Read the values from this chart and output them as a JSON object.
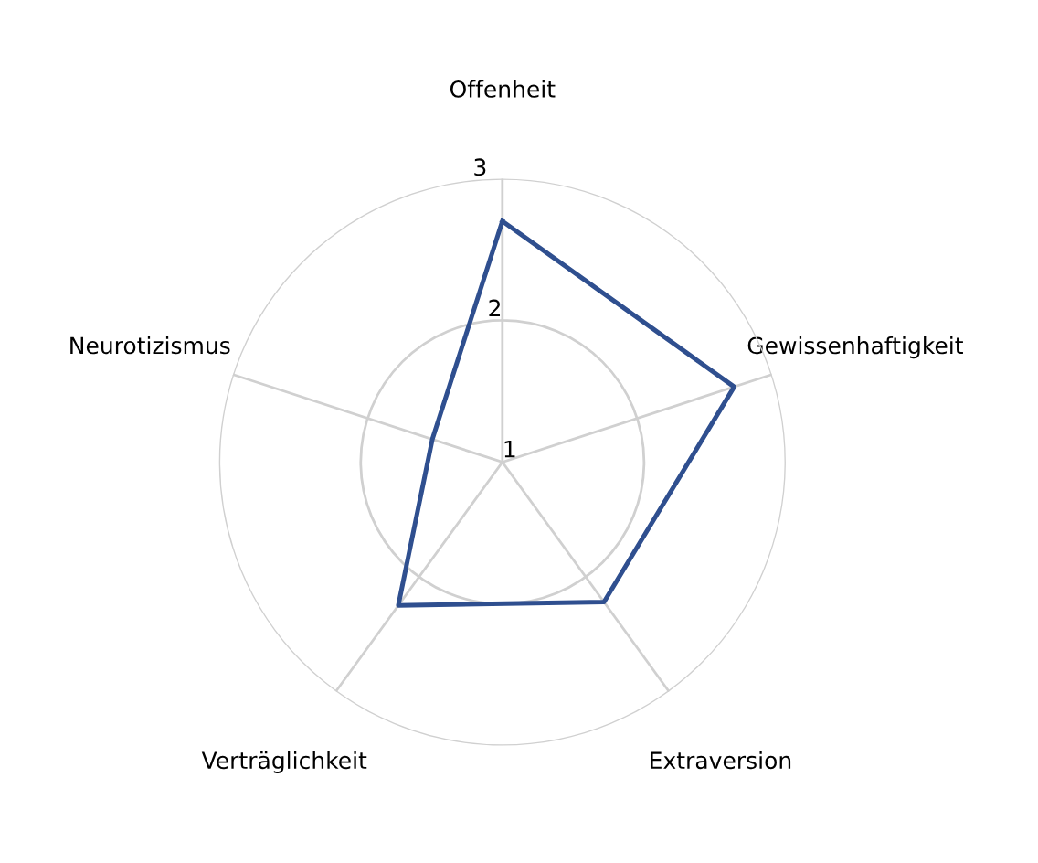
{
  "chart_data": {
    "type": "radar",
    "categories": [
      "Offenheit",
      "Gewissenhaftigkeit",
      "Extraversion",
      "Verträglichkeit",
      "Neurotizismus"
    ],
    "series": [
      {
        "color": "#2f4f8f",
        "values": [
          2.7,
          2.72,
          2.22,
          2.25,
          1.52
        ]
      }
    ],
    "ylim": [
      1,
      3
    ],
    "yticks": [
      1,
      2,
      3
    ],
    "grid": true,
    "marker": "none",
    "line_style": "solid"
  }
}
